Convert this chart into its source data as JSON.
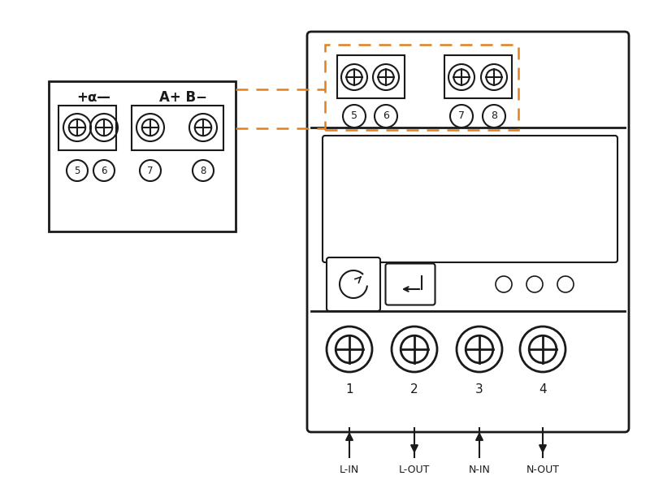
{
  "bg_color": "#ffffff",
  "line_color": "#1a1a1a",
  "orange_color": "#e08020",
  "labels_bottom": [
    "L-IN",
    "L-OUT",
    "N-IN",
    "N-OUT"
  ],
  "terminal_labels_main": [
    "1",
    "2",
    "3",
    "4"
  ],
  "terminal_labels_comm": [
    "5",
    "6",
    "7",
    "8"
  ],
  "header1": "+⍺—",
  "header2": "A+ B−",
  "arrows_up": [
    true,
    false,
    true,
    false
  ]
}
